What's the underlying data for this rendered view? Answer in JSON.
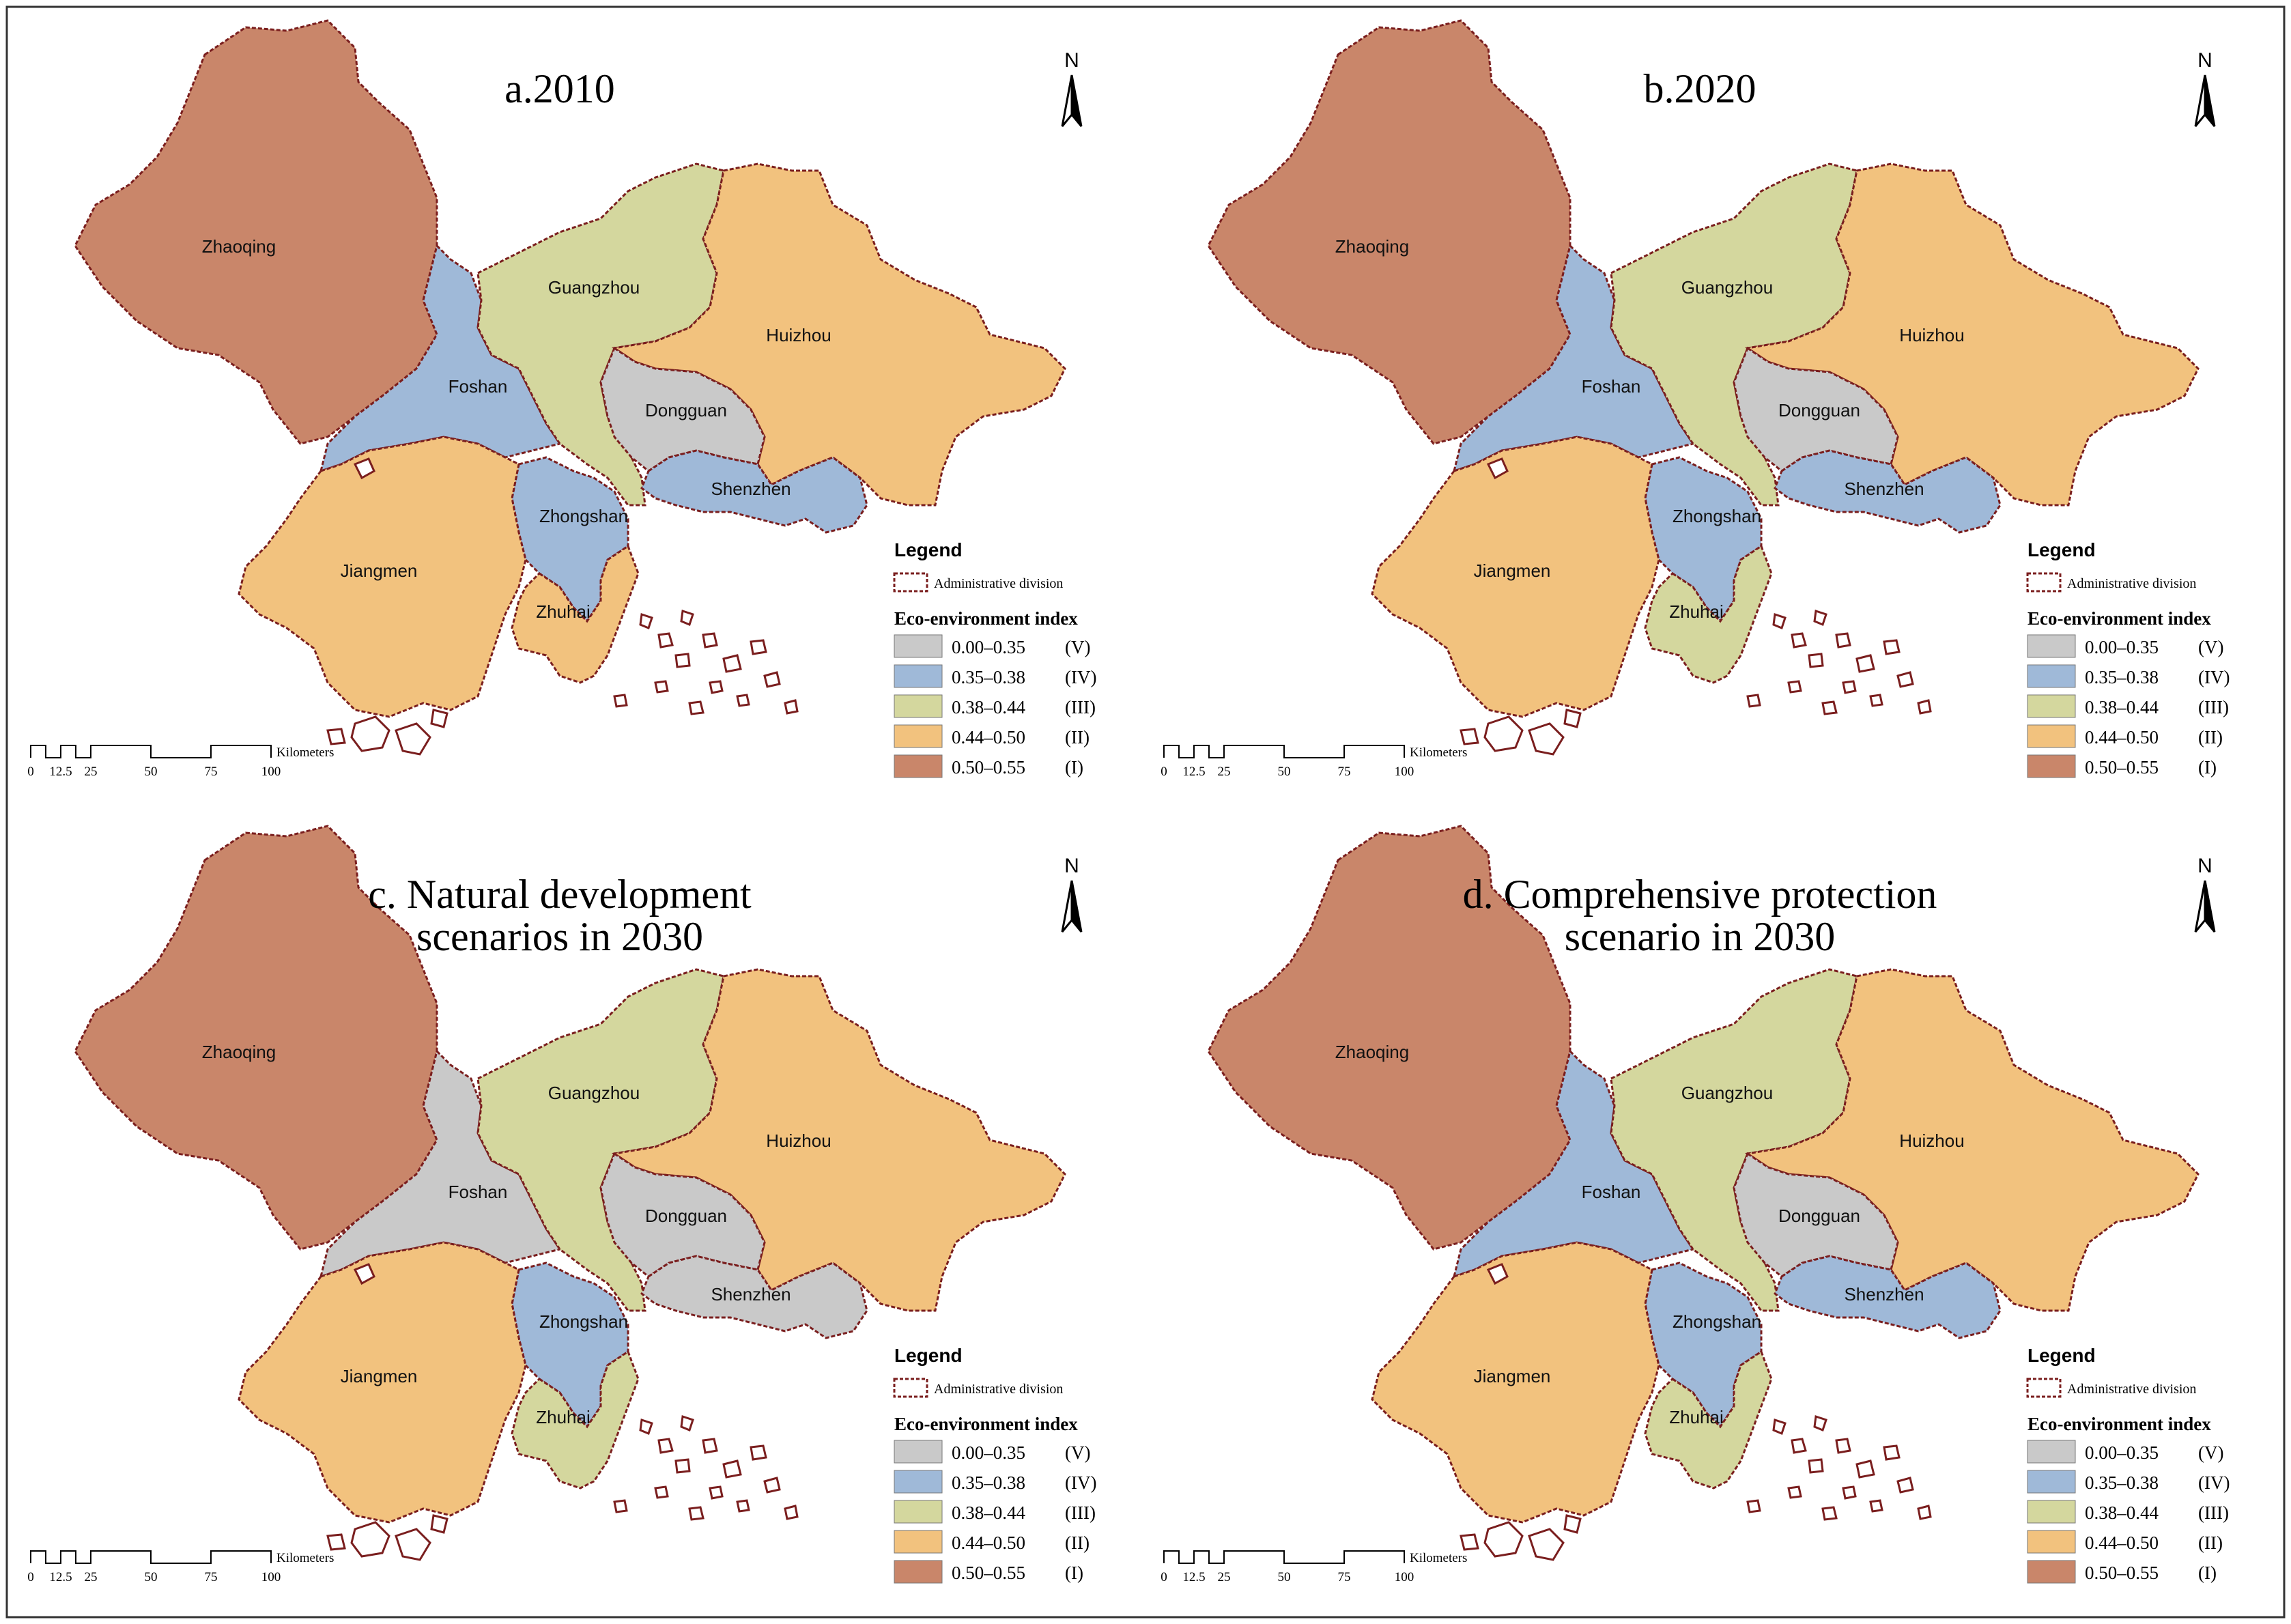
{
  "legend": {
    "title": "Legend",
    "admin_label": "Administrative division",
    "index_title": "Eco-environment index",
    "classes": [
      {
        "range": "0.00–0.35",
        "grade": "(V)",
        "color": "#c9c9c9"
      },
      {
        "range": "0.35–0.38",
        "grade": "(IV)",
        "color": "#9fb9d8"
      },
      {
        "range": "0.38–0.44",
        "grade": "(III)",
        "color": "#d4d79e"
      },
      {
        "range": "0.44–0.50",
        "grade": "(II)",
        "color": "#f2c27e"
      },
      {
        "range": "0.50–0.55",
        "grade": "(I)",
        "color": "#c9866a"
      }
    ]
  },
  "north_label": "N",
  "scale": {
    "ticks": [
      "0",
      "12.5",
      "25",
      "50",
      "75",
      "100"
    ],
    "unit": "Kilometers"
  },
  "border_color": "#7a1e1e",
  "panels": [
    {
      "title": [
        "a.2010"
      ],
      "classes": {
        "Zhaoqing": 4,
        "Foshan": 1,
        "Guangzhou": 2,
        "Huizhou": 3,
        "Dongguan": 0,
        "Shenzhen": 1,
        "Zhongshan": 1,
        "Jiangmen": 3,
        "Zhuhai": 3
      }
    },
    {
      "title": [
        "b.2020"
      ],
      "classes": {
        "Zhaoqing": 4,
        "Foshan": 1,
        "Guangzhou": 2,
        "Huizhou": 3,
        "Dongguan": 0,
        "Shenzhen": 1,
        "Zhongshan": 1,
        "Jiangmen": 3,
        "Zhuhai": 2
      }
    },
    {
      "title": [
        "c. Natural development",
        "scenarios in 2030"
      ],
      "classes": {
        "Zhaoqing": 4,
        "Foshan": 0,
        "Guangzhou": 2,
        "Huizhou": 3,
        "Dongguan": 0,
        "Shenzhen": 0,
        "Zhongshan": 1,
        "Jiangmen": 3,
        "Zhuhai": 2
      }
    },
    {
      "title": [
        "d. Comprehensive protection",
        "scenario in 2030"
      ],
      "classes": {
        "Zhaoqing": 4,
        "Foshan": 1,
        "Guangzhou": 2,
        "Huizhou": 3,
        "Dongguan": 0,
        "Shenzhen": 1,
        "Zhongshan": 1,
        "Jiangmen": 3,
        "Zhuhai": 2
      }
    }
  ],
  "cities": [
    "Zhaoqing",
    "Foshan",
    "Guangzhou",
    "Huizhou",
    "Dongguan",
    "Shenzhen",
    "Zhongshan",
    "Jiangmen",
    "Zhuhai"
  ]
}
